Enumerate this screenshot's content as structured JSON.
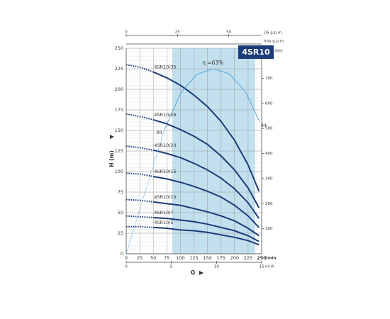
{
  "chart_data": {
    "type": "line",
    "title": "4SR10",
    "xlabel": "Q",
    "ylabel": "H (m)",
    "x_unit": "l/min",
    "xlim": [
      0,
      250
    ],
    "xticks": [
      0,
      25,
      50,
      75,
      100,
      125,
      150,
      175,
      200,
      225,
      250
    ],
    "ylim": [
      0,
      250
    ],
    "yticks": [
      0,
      25,
      50,
      75,
      100,
      125,
      150,
      175,
      200,
      225,
      250
    ],
    "y2label": "feet",
    "y2lim": [
      0,
      820.2
    ],
    "y2ticks": [
      100,
      200,
      300,
      400,
      500,
      600,
      700
    ],
    "m3h_axis": {
      "label": "m³/h",
      "lim": [
        0,
        15
      ],
      "ticks": [
        0,
        5,
        10,
        15
      ]
    },
    "usgpm_axis": {
      "label": "US g.p.m.",
      "lim": [
        0,
        66.04
      ],
      "ticks": [
        0,
        25,
        50
      ]
    },
    "impgpm_axis": {
      "label": "Imp g.p.m.",
      "lim": [
        0,
        54.99
      ]
    },
    "grid": true,
    "shaded_range": [
      85,
      238
    ],
    "shade_color": "#b9dbec",
    "x": [
      0,
      25,
      50,
      75,
      100,
      125,
      150,
      175,
      200,
      225,
      245
    ],
    "series": [
      {
        "name": "4SR10/35",
        "color": "#1b3c78",
        "dashed_below_x": 50,
        "values": [
          230,
          227,
          221,
          214,
          205,
          193,
          179,
          161,
          138,
          108,
          76
        ]
      },
      {
        "name": "4SR10/26",
        "color": "#1b3c78",
        "dashed_below_x": 50,
        "values": [
          170,
          167,
          163,
          158,
          151,
          143,
          133,
          119,
          102,
          80,
          56
        ]
      },
      {
        "name": "4SR10/20",
        "color": "#1b3c78",
        "dashed_below_x": 50,
        "values": [
          131,
          129,
          126,
          122,
          117,
          110,
          102,
          92,
          79,
          62,
          43
        ]
      },
      {
        "name": "4SR10/15",
        "color": "#1b3c78",
        "dashed_below_x": 50,
        "values": [
          98,
          97,
          94,
          91,
          87,
          82,
          76,
          69,
          59,
          46,
          32
        ]
      },
      {
        "name": "4SR10/10",
        "color": "#1b3c78",
        "dashed_below_x": 50,
        "values": [
          66,
          65,
          63,
          61,
          59,
          55,
          51,
          46,
          40,
          31,
          22
        ]
      },
      {
        "name": "4SR10/7",
        "color": "#1b3c78",
        "dashed_below_x": 50,
        "values": [
          46,
          45,
          44,
          43,
          41,
          39,
          36,
          32,
          28,
          22,
          15
        ]
      },
      {
        "name": "4SR10/5",
        "color": "#1b3c78",
        "dashed_below_x": 50,
        "values": [
          33,
          33,
          32,
          31,
          29,
          28,
          26,
          23,
          20,
          16,
          11
        ]
      }
    ],
    "efficiency": {
      "color": "#3a9ad9",
      "dashed_below_x": 70,
      "x": [
        0,
        35,
        70,
        100,
        130,
        160,
        190,
        220,
        246
      ],
      "values": [
        0,
        75,
        150,
        195,
        218,
        225,
        219,
        197,
        161
      ],
      "start_label": "40",
      "peak_label": "η =63%",
      "end_label": "44"
    }
  }
}
